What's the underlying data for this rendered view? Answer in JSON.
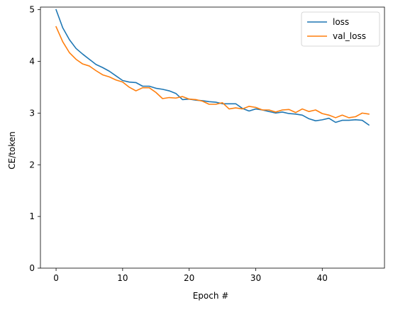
{
  "chart_data": {
    "type": "line",
    "xlabel": "Epoch #",
    "ylabel": "CE/token",
    "xlim": [
      -2.35,
      49.35
    ],
    "ylim": [
      0,
      5.05
    ],
    "xticks": [
      0,
      10,
      20,
      30,
      40
    ],
    "yticks": [
      0,
      1,
      2,
      3,
      4,
      5
    ],
    "grid": false,
    "legend_position": "top-right",
    "x": [
      0,
      1,
      2,
      3,
      4,
      5,
      6,
      7,
      8,
      9,
      10,
      11,
      12,
      13,
      14,
      15,
      16,
      17,
      18,
      19,
      20,
      21,
      22,
      23,
      24,
      25,
      26,
      27,
      28,
      29,
      30,
      31,
      32,
      33,
      34,
      35,
      36,
      37,
      38,
      39,
      40,
      41,
      42,
      43,
      44,
      45,
      46,
      47
    ],
    "series": [
      {
        "name": "loss",
        "color": "#1f77b4",
        "values": [
          5.0,
          4.65,
          4.42,
          4.25,
          4.14,
          4.04,
          3.94,
          3.88,
          3.81,
          3.72,
          3.63,
          3.6,
          3.59,
          3.52,
          3.52,
          3.48,
          3.46,
          3.43,
          3.38,
          3.26,
          3.27,
          3.25,
          3.24,
          3.22,
          3.21,
          3.18,
          3.18,
          3.18,
          3.09,
          3.04,
          3.08,
          3.06,
          3.03,
          3.0,
          3.02,
          2.99,
          2.98,
          2.96,
          2.89,
          2.85,
          2.87,
          2.9,
          2.82,
          2.86,
          2.86,
          2.87,
          2.86,
          2.77
        ]
      },
      {
        "name": "val_loss",
        "color": "#ff7f0e",
        "values": [
          4.67,
          4.38,
          4.17,
          4.04,
          3.95,
          3.91,
          3.82,
          3.74,
          3.7,
          3.64,
          3.6,
          3.5,
          3.43,
          3.49,
          3.49,
          3.4,
          3.28,
          3.3,
          3.29,
          3.32,
          3.27,
          3.26,
          3.23,
          3.17,
          3.17,
          3.2,
          3.08,
          3.1,
          3.08,
          3.13,
          3.11,
          3.06,
          3.06,
          3.02,
          3.06,
          3.07,
          3.01,
          3.08,
          3.03,
          3.06,
          2.99,
          2.96,
          2.91,
          2.96,
          2.91,
          2.93,
          3.0,
          2.98
        ]
      }
    ]
  }
}
